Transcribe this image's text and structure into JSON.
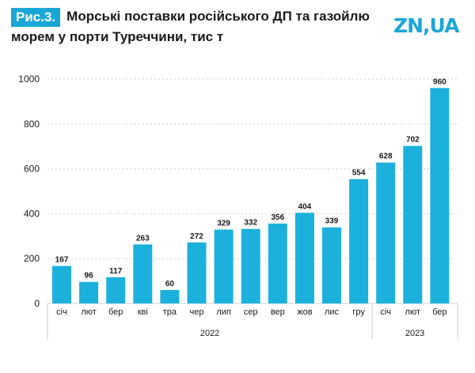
{
  "header": {
    "figure_label": "Рис.3.",
    "title_line1": "Морські поставки російського ДП та газойлю",
    "title_line2": "морем у порти Туреччини, тис т",
    "logo_text": "ZN,UA"
  },
  "colors": {
    "bar": "#1bb1dc",
    "accent": "#1aa7d6",
    "text": "#1a1a1a",
    "grid": "#cfcfcf"
  },
  "chart_data": {
    "type": "bar",
    "title": "Морські поставки російського ДП та газойлю морем у порти Туреччини, тис т",
    "categories": [
      "січ",
      "лют",
      "бер",
      "кві",
      "тра",
      "чер",
      "лип",
      "сер",
      "вер",
      "жов",
      "лис",
      "гру",
      "січ",
      "лют",
      "бер"
    ],
    "values": [
      167,
      96,
      117,
      263,
      60,
      272,
      329,
      332,
      356,
      404,
      339,
      554,
      628,
      702,
      960
    ],
    "groups": [
      {
        "label": "2022",
        "from": 0,
        "to": 11
      },
      {
        "label": "2023",
        "from": 12,
        "to": 14
      }
    ],
    "ylim": [
      0,
      1000
    ],
    "yticks": [
      0,
      200,
      400,
      600,
      800,
      1000
    ],
    "grid": "horizontal",
    "xlabel": "",
    "ylabel": ""
  }
}
